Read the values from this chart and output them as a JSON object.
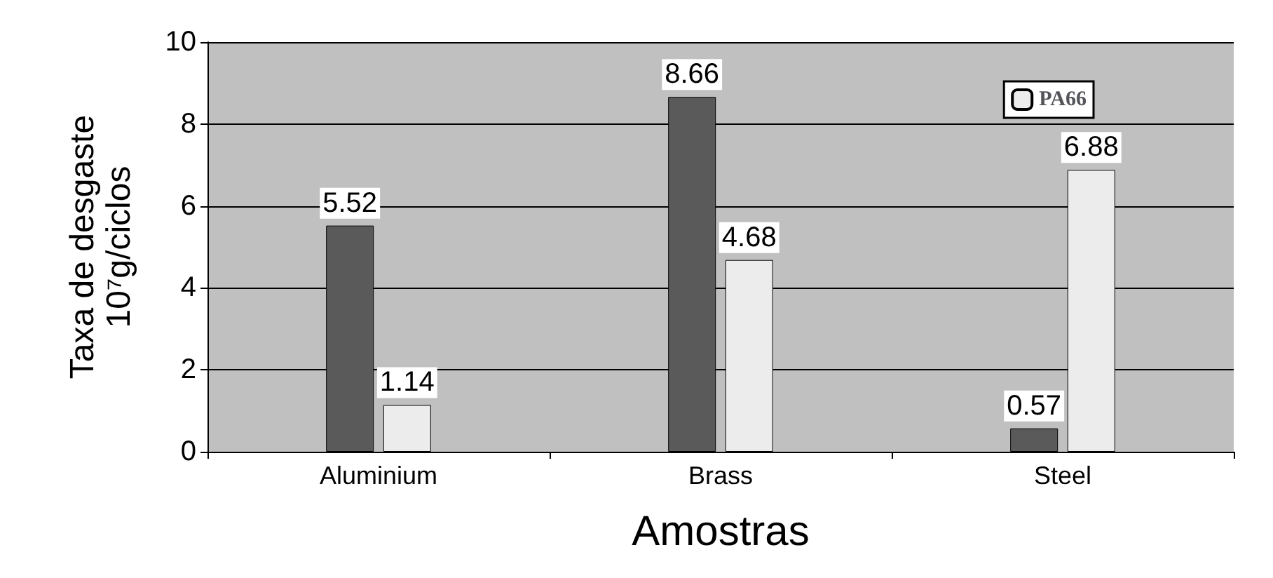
{
  "chart_data": {
    "type": "bar",
    "xlabel": "Amostras",
    "ylabel": "Taxa de desgaste\n10⁷g/ciclos",
    "categories": [
      "Aluminium",
      "Brass",
      "Steel"
    ],
    "series": [
      {
        "color": "#5a5a5a",
        "values": [
          5.52,
          8.66,
          0.57
        ]
      },
      {
        "name": "PA66",
        "color": "#ececec",
        "values": [
          1.14,
          4.68,
          6.88
        ]
      }
    ],
    "ylim": [
      0,
      10
    ],
    "yticks": [
      0,
      2,
      4,
      6,
      8,
      10
    ],
    "grid": "y",
    "legend": "top right",
    "data_labels": true
  }
}
